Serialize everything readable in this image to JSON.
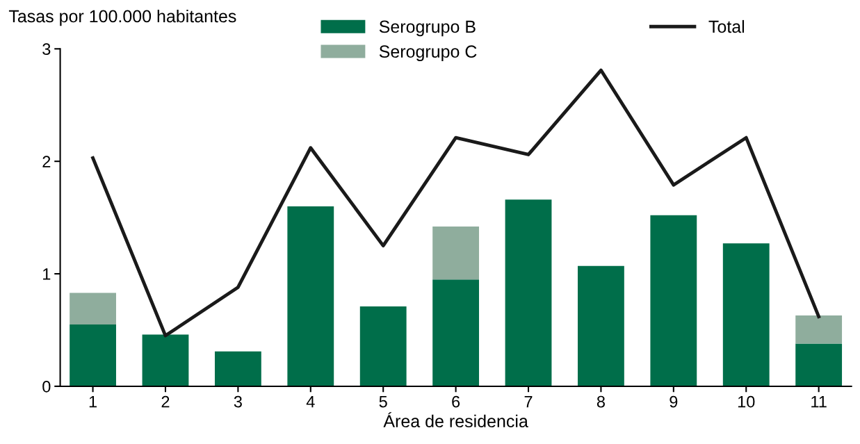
{
  "chart_data": {
    "type": "bar",
    "stacked": true,
    "ylabel": "Tasas por 100.000 habitantes",
    "xlabel": "Área de residencia",
    "categories": [
      "1",
      "2",
      "3",
      "4",
      "5",
      "6",
      "7",
      "8",
      "9",
      "10",
      "11"
    ],
    "series": [
      {
        "name": "Serogrupo B",
        "color": "#006e4a",
        "values": [
          0.55,
          0.46,
          0.31,
          1.6,
          0.71,
          0.95,
          1.66,
          1.07,
          1.52,
          1.27,
          0.38
        ]
      },
      {
        "name": "Serogrupo C",
        "color": "#8fad9d",
        "values": [
          0.28,
          null,
          null,
          null,
          null,
          0.47,
          null,
          null,
          null,
          null,
          0.25
        ]
      },
      {
        "name": "Total",
        "type": "line",
        "color": "#1a1a1a",
        "line_style": "solid",
        "values": [
          2.03,
          0.45,
          0.88,
          2.12,
          1.25,
          2.21,
          2.06,
          2.81,
          1.79,
          2.21,
          0.62
        ]
      }
    ],
    "ylim": [
      0,
      3
    ],
    "yticks": [
      0,
      1,
      2,
      3
    ],
    "grid": false,
    "legend": "top",
    "marker": "none"
  }
}
